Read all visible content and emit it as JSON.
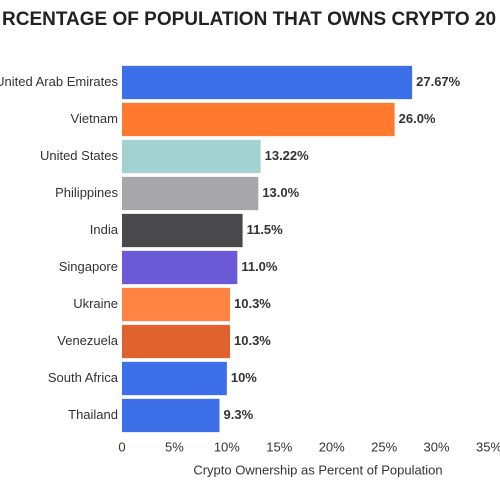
{
  "chart_data": {
    "type": "barh",
    "title": "RCENTAGE OF POPULATION THAT OWNS CRYPTO 20",
    "xlabel": "Crypto Ownership as Percent of Population",
    "categories": [
      "United Arab Emirates",
      "Vietnam",
      "United States",
      "Philippines",
      "India",
      "Singapore",
      "Ukraine",
      "Venezuela",
      "South Africa",
      "Thailand"
    ],
    "values": [
      27.67,
      26.0,
      13.22,
      13.0,
      11.5,
      11.0,
      10.3,
      10.3,
      10,
      9.3
    ],
    "value_labels": [
      "27.67%",
      "26.0%",
      "13.22%",
      "13.0%",
      "11.5%",
      "11.0%",
      "10.3%",
      "10.3%",
      "10%",
      "9.3%"
    ],
    "colors": [
      "#3d6fe8",
      "#ff7a2f",
      "#a2d2d2",
      "#a7a7aa",
      "#49494b",
      "#6b5bd9",
      "#ff8444",
      "#e0622f",
      "#3d6fe8",
      "#3d6fe8"
    ],
    "xlim": [
      0,
      35
    ],
    "xticks": [
      0,
      {
        "value": 5,
        "label": "5%"
      },
      {
        "value": 10,
        "label": "10%"
      },
      {
        "value": 15,
        "label": "15%"
      },
      {
        "value": 20,
        "label": "20%"
      },
      {
        "value": 25,
        "label": "25%"
      },
      {
        "value": 30,
        "label": "30%"
      },
      {
        "value": 35,
        "label": "35%"
      }
    ]
  }
}
